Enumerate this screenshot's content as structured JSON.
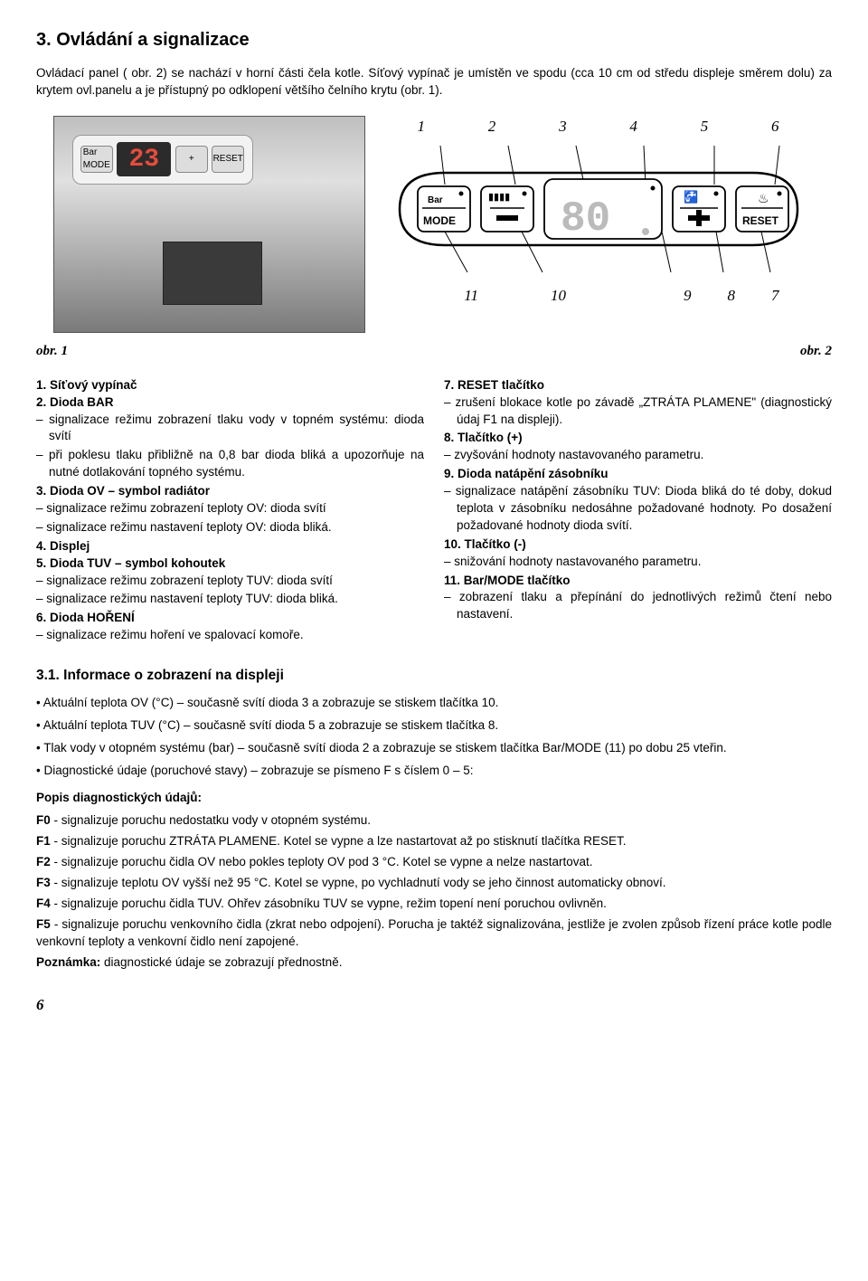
{
  "title": "3. Ovládání a signalizace",
  "intro": "Ovládací panel ( obr. 2) se nachází v horní části čela kotle. Síťový vypínač je umístěn ve spodu (cca 10 cm od středu displeje směrem dolu) za krytem ovl.panelu a je přístupný po odklopení většího čelního krytu (obr. 1).",
  "figure": {
    "photo_display": "23",
    "top_labels": [
      "1",
      "2",
      "3",
      "4",
      "5",
      "6"
    ],
    "bottom_labels": [
      "11",
      "10",
      "9",
      "8",
      "7"
    ],
    "btn_barmode_top": "Bar",
    "btn_barmode_bot": "MODE",
    "btn_reset": "RESET",
    "display_value": "80",
    "obr1": "obr. 1",
    "obr2": "obr. 2"
  },
  "left_items": [
    {
      "head": "1. Síťový vypínač",
      "sub": []
    },
    {
      "head": "2. Dioda BAR",
      "sub": [
        "signalizace režimu zobrazení tlaku vody v topném systému: dioda svítí",
        "při poklesu tlaku přibližně na 0,8 bar dioda bliká a upozorňuje na nutné dotlakování topného systému."
      ]
    },
    {
      "head": "3. Dioda OV – symbol radiátor",
      "sub": [
        "signalizace režimu zobrazení teploty OV: dioda svítí",
        "signalizace režimu nastavení teploty OV: dioda bliká."
      ]
    },
    {
      "head": "4. Displej",
      "sub": []
    },
    {
      "head": "5. Dioda TUV – symbol kohoutek",
      "sub": [
        "signalizace režimu zobrazení teploty TUV: dioda svítí",
        "signalizace režimu nastavení teploty TUV: dioda bliká."
      ]
    },
    {
      "head": "6. Dioda HOŘENÍ",
      "sub": [
        "signalizace režimu hoření ve spalovací komoře."
      ]
    }
  ],
  "right_items": [
    {
      "head": "7. RESET tlačítko",
      "sub": [
        "zrušení blokace kotle po závadě „ZTRÁTA PLAMENE\" (diagnostický údaj F1 na displeji)."
      ]
    },
    {
      "head": "8. Tlačítko (+)",
      "sub": [
        "zvyšování hodnoty nastavovaného parametru."
      ]
    },
    {
      "head": "9. Dioda natápění zásobníku",
      "sub": [
        "signalizace natápění zásobníku TUV: Dioda bliká do té doby, dokud teplota v zásobníku nedosáhne požadované hodnoty. Po dosažení požadované hodnoty dioda svítí."
      ]
    },
    {
      "head": "10. Tlačítko (-)",
      "sub": [
        "snižování hodnoty nastavovaného parametru."
      ]
    },
    {
      "head": "11. Bar/MODE tlačítko",
      "sub": [
        "zobrazení tlaku a přepínání do jednotlivých režimů čtení nebo nastavení."
      ]
    }
  ],
  "subsection_title": "3.1. Informace o zobrazení na displeji",
  "bullets": [
    "Aktuální teplota OV (°C) – současně svítí dioda 3 a zobrazuje se stiskem tlačítka 10.",
    "Aktuální teplota TUV (°C) – současně svítí dioda 5 a zobrazuje se stiskem tlačítka 8.",
    "Tlak vody v otopném systému (bar) – současně svítí dioda 2 a zobrazuje se stiskem tlačítka Bar/MODE (11) po dobu 25 vteřin.",
    "Diagnostické údaje (poruchové stavy) – zobrazuje se písmeno F s číslem 0 – 5:"
  ],
  "diag_head": "Popis diagnostických údajů:",
  "diag": [
    {
      "code": "F0",
      "txt": " - signalizuje poruchu nedostatku vody v otopném systému."
    },
    {
      "code": "F1",
      "txt": " - signalizuje poruchu ZTRÁTA PLAMENE. Kotel se vypne a lze nastartovat až po stisknutí tlačítka RESET."
    },
    {
      "code": "F2",
      "txt": " - signalizuje poruchu čidla OV nebo pokles teploty OV pod 3 °C. Kotel se vypne a nelze nastartovat."
    },
    {
      "code": "F3",
      "txt": " - signalizuje teplotu OV vyšší než 95 °C. Kotel se vypne, po vychladnutí vody se jeho činnost automaticky obnoví."
    },
    {
      "code": "F4",
      "txt": " - signalizuje poruchu čidla TUV. Ohřev zásobníku TUV se vypne, režim topení není poruchou ovlivněn."
    },
    {
      "code": "F5",
      "txt": " - signalizuje poruchu venkovního čidla (zkrat nebo odpojení). Porucha je taktéž signalizována, jestliže je zvolen způsob řízení práce kotle podle venkovní teploty a venkovní čidlo není zapojené."
    }
  ],
  "note_label": "Poznámka:",
  "note_text": " diagnostické údaje se zobrazují přednostně.",
  "page_number": "6"
}
